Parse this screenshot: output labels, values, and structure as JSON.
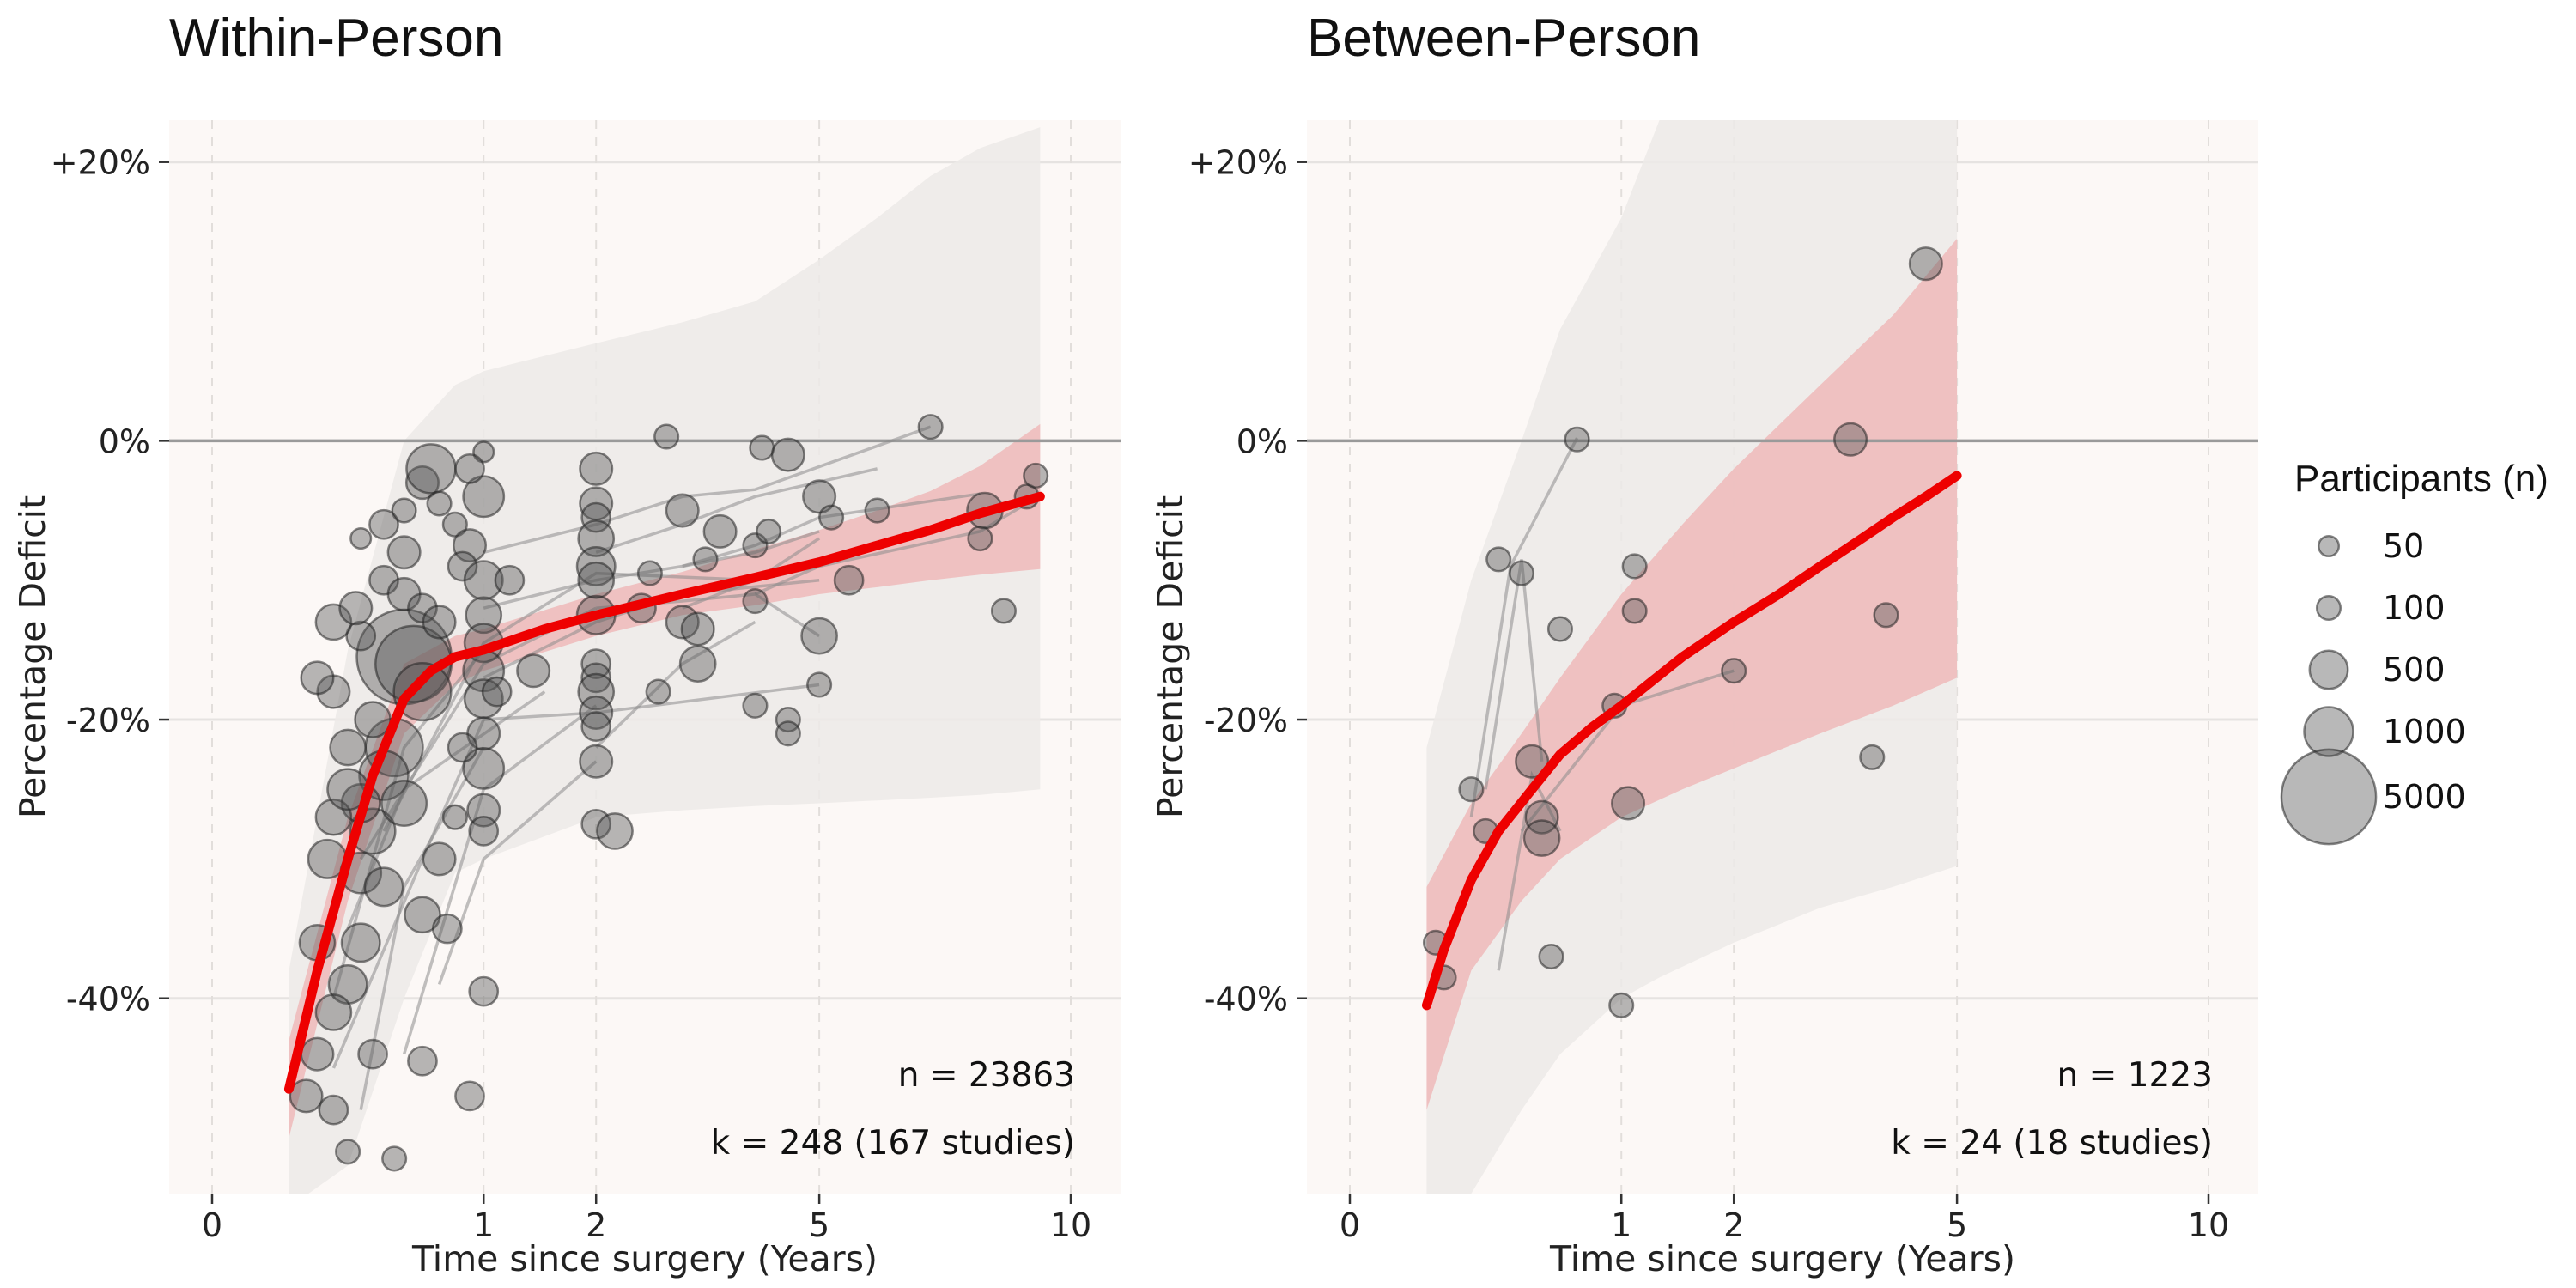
{
  "legend": {
    "title": "Participants (n)",
    "entries": [
      {
        "label": "50",
        "n": 50
      },
      {
        "label": "100",
        "n": 100
      },
      {
        "label": "500",
        "n": 500
      },
      {
        "label": "1000",
        "n": 1000
      },
      {
        "label": "5000",
        "n": 5000
      }
    ]
  },
  "colors": {
    "panel_bg": "#fcf8f6",
    "fit_line": "#ee0000",
    "ci_band": "#eebcbc",
    "pi_band": "#eceae8",
    "points": "#555555"
  },
  "chart_data": [
    {
      "type": "scatter",
      "title": "Within-Person",
      "xlabel": "Time since surgery (Years)",
      "ylabel": "Percentage Deficit",
      "x_scale": "sqrt",
      "xlim": [
        0,
        10.5
      ],
      "ylim": [
        -54,
        23
      ],
      "x_ticks": [
        0,
        1,
        2,
        5,
        10
      ],
      "y_ticks": [
        {
          "value": 20,
          "label": "+20%"
        },
        {
          "value": 0,
          "label": "0%"
        },
        {
          "value": -20,
          "label": "-20%"
        },
        {
          "value": -40,
          "label": "-40%"
        }
      ],
      "reference_line_y": 0,
      "annotations": [
        "n = 23863",
        "k = 248 (167 studies)"
      ],
      "fit": {
        "x": [
          0.08,
          0.15,
          0.25,
          0.35,
          0.5,
          0.65,
          0.8,
          1,
          1.5,
          2,
          3,
          4,
          5,
          6,
          7,
          8,
          9.3
        ],
        "y": [
          -46.5,
          -38,
          -30,
          -24,
          -18.5,
          -16.5,
          -15.5,
          -15,
          -13.5,
          -12.5,
          -11,
          -9.8,
          -8.7,
          -7.5,
          -6.4,
          -5.2,
          -4
        ]
      },
      "ci_band": {
        "x": [
          0.08,
          0.25,
          0.5,
          0.8,
          1,
          2,
          3,
          4,
          5,
          6,
          7,
          8,
          9.3
        ],
        "lower": [
          -50,
          -33,
          -21,
          -17.5,
          -16.5,
          -14,
          -12.5,
          -11.8,
          -11,
          -10.5,
          -10,
          -9.6,
          -9.2
        ],
        "upper": [
          -43,
          -27,
          -16,
          -14,
          -13.5,
          -11,
          -9.4,
          -7.8,
          -6.4,
          -5,
          -3.6,
          -1.8,
          1.2
        ]
      },
      "pi_band": {
        "x": [
          0.08,
          0.25,
          0.5,
          0.8,
          1,
          2,
          3,
          4,
          5,
          6,
          7,
          8,
          9.3
        ],
        "lower": [
          -55,
          -52,
          -40,
          -31,
          -30,
          -27,
          -26.5,
          -26.2,
          -26,
          -25.8,
          -25.6,
          -25.4,
          -25
        ],
        "upper": [
          -38,
          -15,
          0,
          4,
          5,
          7,
          8.5,
          10,
          13,
          16,
          19,
          21,
          22.5
        ]
      },
      "trajectories": [
        [
          [
            0.2,
            -40
          ],
          [
            0.5,
            -22
          ],
          [
            1,
            -15
          ]
        ],
        [
          [
            0.25,
            -35
          ],
          [
            0.5,
            -25
          ],
          [
            1.5,
            -18
          ]
        ],
        [
          [
            0.3,
            -30
          ],
          [
            1,
            -16
          ],
          [
            2,
            -12
          ]
        ],
        [
          [
            0.2,
            -45
          ],
          [
            0.6,
            -30
          ],
          [
            1,
            -20
          ]
        ],
        [
          [
            0.5,
            -44
          ],
          [
            1,
            -25
          ],
          [
            2,
            -19
          ]
        ],
        [
          [
            0.7,
            -39
          ],
          [
            1,
            -30
          ],
          [
            2,
            -23
          ]
        ],
        [
          [
            1,
            -17
          ],
          [
            2,
            -13
          ],
          [
            3,
            -11
          ],
          [
            5,
            -10
          ]
        ],
        [
          [
            1,
            -20
          ],
          [
            2,
            -19.5
          ],
          [
            5,
            -17.5
          ]
        ],
        [
          [
            2,
            -22
          ],
          [
            3,
            -16
          ],
          [
            4,
            -13
          ]
        ],
        [
          [
            2,
            -8
          ],
          [
            3,
            -6
          ],
          [
            4,
            -4
          ],
          [
            6,
            -2
          ]
        ],
        [
          [
            1,
            -12
          ],
          [
            2,
            -10
          ],
          [
            3,
            -9
          ],
          [
            4,
            -8
          ],
          [
            5,
            -6.5
          ]
        ],
        [
          [
            3,
            -9
          ],
          [
            4,
            -7.5
          ],
          [
            5,
            -5.5
          ],
          [
            8,
            -3.8
          ]
        ],
        [
          [
            1,
            -8
          ],
          [
            2,
            -6
          ],
          [
            3,
            -4
          ],
          [
            4,
            -3.5
          ],
          [
            7,
            1
          ]
        ],
        [
          [
            0.3,
            -48
          ],
          [
            0.5,
            -32
          ],
          [
            1,
            -22
          ]
        ],
        [
          [
            2,
            -12
          ],
          [
            3,
            -11.5
          ],
          [
            4,
            -11
          ],
          [
            5,
            -14
          ]
        ],
        [
          [
            0.4,
            -28
          ],
          [
            1,
            -14.5
          ],
          [
            2,
            -9.5
          ],
          [
            4,
            -10
          ],
          [
            5,
            -7
          ]
        ],
        [
          [
            4,
            -11
          ],
          [
            5,
            -9
          ],
          [
            8,
            -6.5
          ],
          [
            9,
            -4.5
          ]
        ],
        [
          [
            3,
            -12
          ],
          [
            4,
            -10
          ],
          [
            5,
            -9
          ]
        ]
      ],
      "points": [
        [
          0.5,
          -15.5,
          5000
        ],
        [
          0.55,
          -16,
          3000
        ],
        [
          0.6,
          -18,
          1500
        ],
        [
          0.45,
          -22,
          1500
        ],
        [
          0.4,
          -24,
          1000
        ],
        [
          0.35,
          -28,
          800
        ],
        [
          0.5,
          -26,
          800
        ],
        [
          0.3,
          -31,
          600
        ],
        [
          0.4,
          -32,
          500
        ],
        [
          0.3,
          -36,
          500
        ],
        [
          0.25,
          -39,
          500
        ],
        [
          0.2,
          -41,
          400
        ],
        [
          0.15,
          -44,
          300
        ],
        [
          0.12,
          -47,
          300
        ],
        [
          0.2,
          -48,
          200
        ],
        [
          0.35,
          -44,
          200
        ],
        [
          0.6,
          -34,
          400
        ],
        [
          0.7,
          -30,
          300
        ],
        [
          0.3,
          -26,
          500
        ],
        [
          0.25,
          -22,
          400
        ],
        [
          0.2,
          -18,
          300
        ],
        [
          0.3,
          -14,
          200
        ],
        [
          0.4,
          -10,
          200
        ],
        [
          0.5,
          -8,
          300
        ],
        [
          0.6,
          -3,
          300
        ],
        [
          0.65,
          -2,
          1000
        ],
        [
          0.7,
          -4.5,
          100
        ],
        [
          0.3,
          -7,
          50
        ],
        [
          0.5,
          -5,
          100
        ],
        [
          0.5,
          -11,
          300
        ],
        [
          0.6,
          -12,
          200
        ],
        [
          0.7,
          -13,
          300
        ],
        [
          0.8,
          -6,
          100
        ],
        [
          0.9,
          -7.5,
          300
        ],
        [
          0.85,
          -9,
          200
        ],
        [
          1,
          -4,
          600
        ],
        [
          1,
          -10,
          500
        ],
        [
          1,
          -12.5,
          400
        ],
        [
          1,
          -14.5,
          500
        ],
        [
          1,
          -16.5,
          600
        ],
        [
          1,
          -18.5,
          500
        ],
        [
          1,
          -21,
          300
        ],
        [
          1,
          -23.5,
          600
        ],
        [
          1,
          -26.5,
          300
        ],
        [
          1,
          -28,
          200
        ],
        [
          1,
          -39.5,
          200
        ],
        [
          1,
          -0.8,
          50
        ],
        [
          0.9,
          -2,
          200
        ],
        [
          0.85,
          -22,
          200
        ],
        [
          0.8,
          -27,
          100
        ],
        [
          0.75,
          -35,
          200
        ],
        [
          0.6,
          -44.5,
          200
        ],
        [
          0.45,
          -51.5,
          100
        ],
        [
          0.25,
          -51,
          100
        ],
        [
          0.9,
          -47,
          200
        ],
        [
          0.15,
          -36,
          400
        ],
        [
          0.18,
          -30,
          500
        ],
        [
          0.2,
          -27,
          400
        ],
        [
          0.25,
          -25,
          600
        ],
        [
          0.35,
          -20,
          400
        ],
        [
          0.2,
          -13,
          400
        ],
        [
          0.15,
          -17,
          300
        ],
        [
          0.28,
          -12,
          300
        ],
        [
          0.4,
          -6,
          200
        ],
        [
          1.2,
          -10,
          200
        ],
        [
          1.4,
          -16.5,
          300
        ],
        [
          1.1,
          -18,
          200
        ],
        [
          2,
          -2,
          300
        ],
        [
          2,
          -4.5,
          300
        ],
        [
          2,
          -5.5,
          200
        ],
        [
          2,
          -7,
          400
        ],
        [
          2,
          -9,
          500
        ],
        [
          2,
          -10,
          400
        ],
        [
          2,
          -12.5,
          500
        ],
        [
          2,
          -16,
          200
        ],
        [
          2,
          -17,
          200
        ],
        [
          2,
          -18,
          400
        ],
        [
          2,
          -19.5,
          300
        ],
        [
          2,
          -20.5,
          200
        ],
        [
          2,
          -23,
          300
        ],
        [
          2,
          -27.5,
          200
        ],
        [
          2.2,
          -28,
          400
        ],
        [
          2.5,
          -12,
          200
        ],
        [
          2.6,
          -9.5,
          100
        ],
        [
          2.7,
          -18,
          100
        ],
        [
          2.8,
          0.3,
          100
        ],
        [
          3,
          -5,
          300
        ],
        [
          3,
          -13,
          300
        ],
        [
          3.2,
          -16,
          400
        ],
        [
          3.2,
          -13.5,
          300
        ],
        [
          3.5,
          -6.5,
          300
        ],
        [
          3.3,
          -8.5,
          100
        ],
        [
          4,
          -7.5,
          100
        ],
        [
          4,
          -19,
          100
        ],
        [
          4.1,
          -0.5,
          100
        ],
        [
          4.2,
          -6.5,
          100
        ],
        [
          4,
          -11.5,
          100
        ],
        [
          4.5,
          -1,
          300
        ],
        [
          4.5,
          -20,
          100
        ],
        [
          4.5,
          -21,
          100
        ],
        [
          5,
          -4,
          300
        ],
        [
          5,
          -14,
          400
        ],
        [
          5,
          -17.5,
          100
        ],
        [
          5.2,
          -5.5,
          100
        ],
        [
          5.5,
          -10,
          200
        ],
        [
          6,
          -5,
          100
        ],
        [
          7,
          1,
          100
        ],
        [
          8,
          -7,
          100
        ],
        [
          8.1,
          -5,
          400
        ],
        [
          8.5,
          -12.2,
          100
        ],
        [
          9,
          -4,
          100
        ],
        [
          9.2,
          -2.5,
          100
        ]
      ]
    },
    {
      "type": "scatter",
      "title": "Between-Person",
      "xlabel": "Time since surgery (Years)",
      "ylabel": "Percentage Deficit",
      "x_scale": "sqrt",
      "xlim": [
        0,
        10.5
      ],
      "ylim": [
        -54,
        23
      ],
      "x_ticks": [
        0,
        1,
        2,
        5,
        10
      ],
      "y_ticks": [
        {
          "value": 20,
          "label": "+20%"
        },
        {
          "value": 0,
          "label": "0%"
        },
        {
          "value": -20,
          "label": "-20%"
        },
        {
          "value": -40,
          "label": "-40%"
        }
      ],
      "reference_line_y": 0,
      "annotations": [
        "n = 1223",
        "k = 24 (18 studies)"
      ],
      "fit": {
        "x": [
          0.08,
          0.12,
          0.2,
          0.3,
          0.45,
          0.6,
          0.8,
          1,
          1.5,
          2,
          2.5,
          3,
          3.5,
          4,
          4.5,
          5
        ],
        "y": [
          -40.5,
          -36.5,
          -31.5,
          -28,
          -25,
          -22.5,
          -20.5,
          -19,
          -15.5,
          -13,
          -11,
          -9,
          -7.2,
          -5.5,
          -4,
          -2.5
        ]
      },
      "ci_band": {
        "x": [
          0.08,
          0.2,
          0.4,
          0.6,
          1,
          1.5,
          2,
          3,
          4,
          5
        ],
        "lower": [
          -48,
          -38,
          -33,
          -30,
          -27,
          -25,
          -23.5,
          -21,
          -19,
          -17
        ],
        "upper": [
          -32,
          -26,
          -21,
          -17,
          -11,
          -6,
          -2,
          4,
          9,
          14.5
        ]
      },
      "pi_band": {
        "x": [
          0.08,
          0.2,
          0.4,
          0.6,
          1,
          1.3,
          2,
          3,
          4,
          5
        ],
        "lower": [
          -60,
          -54,
          -48,
          -44,
          -40,
          -38.5,
          -36,
          -33.5,
          -32,
          -30.5
        ],
        "upper": [
          -22,
          -10,
          0,
          8,
          16,
          23,
          23,
          23,
          23,
          23
        ]
      },
      "trajectories": [
        [
          [
            0.2,
            -27
          ],
          [
            0.35,
            -9
          ],
          [
            0.7,
            0.2
          ]
        ],
        [
          [
            0.25,
            -25
          ],
          [
            0.4,
            -8.5
          ],
          [
            0.5,
            -23
          ]
        ],
        [
          [
            0.4,
            -28
          ],
          [
            1,
            -19
          ],
          [
            2,
            -16.5
          ]
        ],
        [
          [
            0.3,
            -38
          ],
          [
            0.45,
            -24
          ],
          [
            0.6,
            -28
          ]
        ]
      ],
      "points": [
        [
          0.1,
          -36,
          100
        ],
        [
          0.12,
          -38.5,
          100
        ],
        [
          0.2,
          -25,
          100
        ],
        [
          0.25,
          -28,
          100
        ],
        [
          0.3,
          -8.5,
          100
        ],
        [
          0.4,
          -9.5,
          100
        ],
        [
          0.45,
          -23,
          300
        ],
        [
          0.5,
          -27,
          300
        ],
        [
          0.5,
          -28.5,
          400
        ],
        [
          0.55,
          -37,
          100
        ],
        [
          0.6,
          -13.5,
          100
        ],
        [
          0.7,
          0.1,
          100
        ],
        [
          0.95,
          -19,
          100
        ],
        [
          1,
          -40.5,
          100
        ],
        [
          1.05,
          -26,
          300
        ],
        [
          1.1,
          -9,
          100
        ],
        [
          1.1,
          -12.2,
          100
        ],
        [
          2,
          -16.5,
          100
        ],
        [
          3.4,
          0.1,
          300
        ],
        [
          3.7,
          -22.7,
          100
        ],
        [
          3.9,
          -12.5,
          100
        ],
        [
          4.5,
          12.7,
          300
        ]
      ]
    }
  ]
}
